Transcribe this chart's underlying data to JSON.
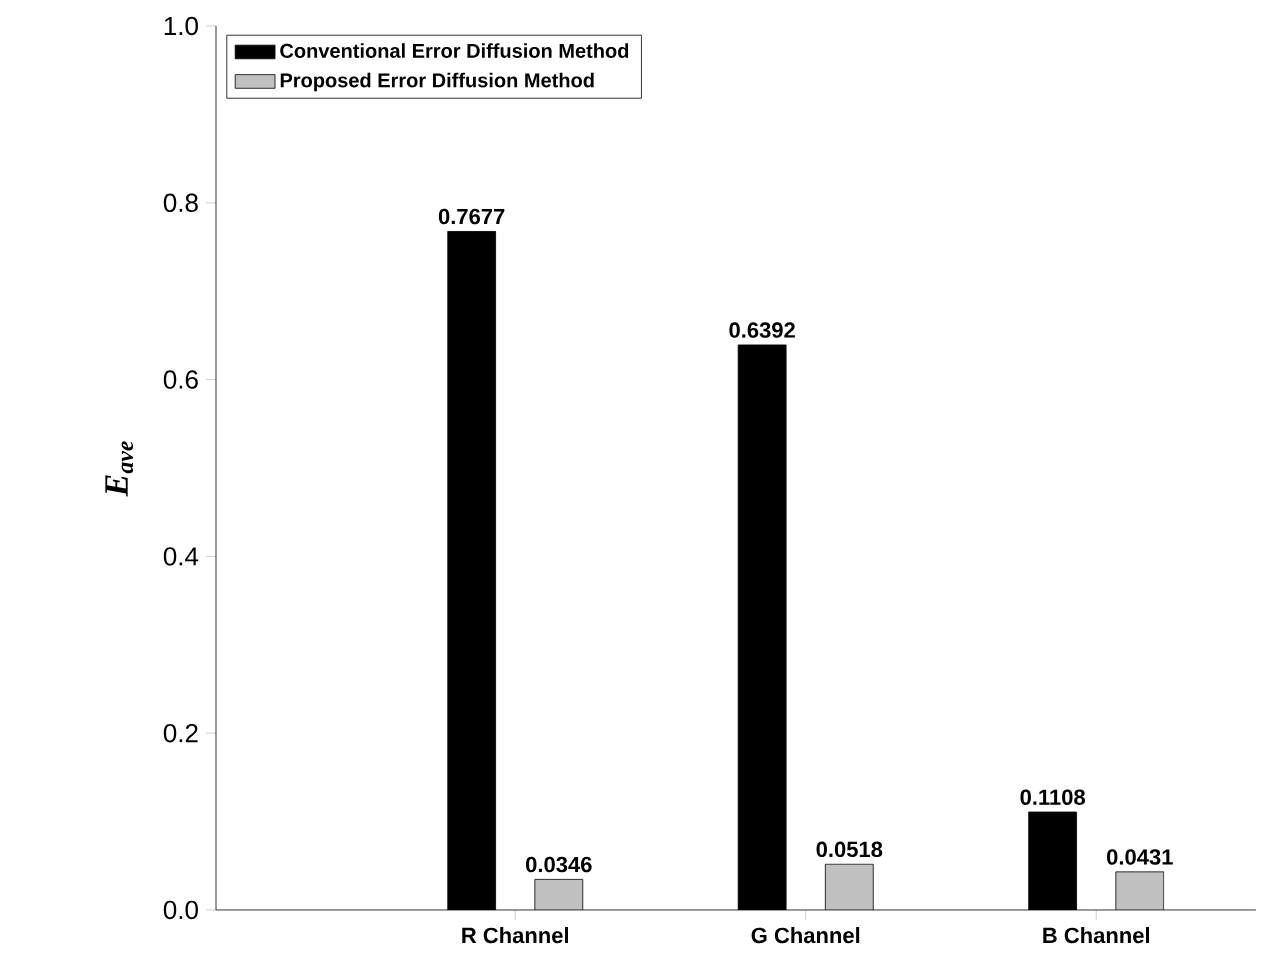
{
  "chart_data": {
    "type": "bar",
    "ylabel": "E$_{ave}$",
    "categories": [
      "R Channel",
      "G Channel",
      "B Channel"
    ],
    "series": [
      {
        "name": "Conventional Error Diffusion Method",
        "color": "#000000",
        "values": [
          0.7677,
          0.6392,
          0.1108
        ]
      },
      {
        "name": "Proposed Error Diffusion Method",
        "color": "#c0c0c0",
        "values": [
          0.0346,
          0.0518,
          0.0431
        ]
      }
    ],
    "ylim": [
      0,
      1
    ],
    "yticks": [
      {
        "value": 0,
        "label": "0.0"
      },
      {
        "value": 0.2,
        "label": "0.2"
      },
      {
        "value": 0.4,
        "label": "0.4"
      },
      {
        "value": 0.6,
        "label": "0.6"
      },
      {
        "value": 0.8,
        "label": "0.8"
      },
      {
        "value": 1,
        "label": "1.0"
      }
    ],
    "data_labels": true,
    "legend": "top left",
    "grid": false
  }
}
